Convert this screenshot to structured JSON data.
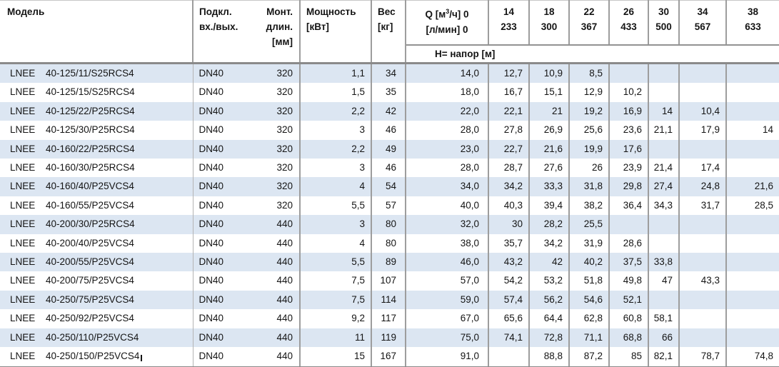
{
  "table": {
    "columns": {
      "model": "Модель",
      "connection": [
        "Подкл.",
        "вх./вых."
      ],
      "length": [
        "Монт.",
        "длин.",
        "[мм]"
      ],
      "power": [
        "Мощность",
        "[кВт]"
      ],
      "weight": [
        "Вес",
        "[кг]"
      ],
      "q_header": {
        "line1_prefix": "Q [м",
        "sup": "3",
        "line1_suffix": "/ч] 0",
        "line2": "[л/мин] 0"
      },
      "flow_columns": [
        {
          "m3h": "14",
          "lmin": "233"
        },
        {
          "m3h": "18",
          "lmin": "300"
        },
        {
          "m3h": "22",
          "lmin": "367"
        },
        {
          "m3h": "26",
          "lmin": "433"
        },
        {
          "m3h": "30",
          "lmin": "500"
        },
        {
          "m3h": "34",
          "lmin": "567"
        },
        {
          "m3h": "38",
          "lmin": "633"
        }
      ],
      "subheader": "Н= напор [м]"
    },
    "rows": [
      {
        "brand": "LNEE",
        "model": "40-125/11/S25RCS4",
        "connection": "DN40",
        "length": "320",
        "power": "1,1",
        "weight": "34",
        "heads": [
          "14,0",
          "12,7",
          "10,9",
          "8,5",
          "",
          "",
          "",
          ""
        ]
      },
      {
        "brand": "LNEE",
        "model": "40-125/15/S25RCS4",
        "connection": "DN40",
        "length": "320",
        "power": "1,5",
        "weight": "35",
        "heads": [
          "18,0",
          "16,7",
          "15,1",
          "12,9",
          "10,2",
          "",
          "",
          ""
        ]
      },
      {
        "brand": "LNEE",
        "model": "40-125/22/P25RCS4",
        "connection": "DN40",
        "length": "320",
        "power": "2,2",
        "weight": "42",
        "heads": [
          "22,0",
          "22,1",
          "21",
          "19,2",
          "16,9",
          "14",
          "10,4",
          ""
        ]
      },
      {
        "brand": "LNEE",
        "model": "40-125/30/P25RCS4",
        "connection": "DN40",
        "length": "320",
        "power": "3",
        "weight": "46",
        "heads": [
          "28,0",
          "27,8",
          "26,9",
          "25,6",
          "23,6",
          "21,1",
          "17,9",
          "14"
        ]
      },
      {
        "brand": "LNEE",
        "model": "40-160/22/P25RCS4",
        "connection": "DN40",
        "length": "320",
        "power": "2,2",
        "weight": "49",
        "heads": [
          "23,0",
          "22,7",
          "21,6",
          "19,9",
          "17,6",
          "",
          "",
          ""
        ]
      },
      {
        "brand": "LNEE",
        "model": "40-160/30/P25RCS4",
        "connection": "DN40",
        "length": "320",
        "power": "3",
        "weight": "46",
        "heads": [
          "28,0",
          "28,7",
          "27,6",
          "26",
          "23,9",
          "21,4",
          "17,4",
          ""
        ]
      },
      {
        "brand": "LNEE",
        "model": "40-160/40/P25VCS4",
        "connection": "DN40",
        "length": "320",
        "power": "4",
        "weight": "54",
        "heads": [
          "34,0",
          "34,2",
          "33,3",
          "31,8",
          "29,8",
          "27,4",
          "24,8",
          "21,6"
        ]
      },
      {
        "brand": "LNEE",
        "model": "40-160/55/P25VCS4",
        "connection": "DN40",
        "length": "320",
        "power": "5,5",
        "weight": "57",
        "heads": [
          "40,0",
          "40,3",
          "39,4",
          "38,2",
          "36,4",
          "34,3",
          "31,7",
          "28,5"
        ]
      },
      {
        "brand": "LNEE",
        "model": "40-200/30/P25RCS4",
        "connection": "DN40",
        "length": "440",
        "power": "3",
        "weight": "80",
        "heads": [
          "32,0",
          "30",
          "28,2",
          "25,5",
          "",
          "",
          "",
          ""
        ]
      },
      {
        "brand": "LNEE",
        "model": "40-200/40/P25VCS4",
        "connection": "DN40",
        "length": "440",
        "power": "4",
        "weight": "80",
        "heads": [
          "38,0",
          "35,7",
          "34,2",
          "31,9",
          "28,6",
          "",
          "",
          ""
        ]
      },
      {
        "brand": "LNEE",
        "model": "40-200/55/P25VCS4",
        "connection": "DN40",
        "length": "440",
        "power": "5,5",
        "weight": "89",
        "heads": [
          "46,0",
          "43,2",
          "42",
          "40,2",
          "37,5",
          "33,8",
          "",
          ""
        ]
      },
      {
        "brand": "LNEE",
        "model": "40-200/75/P25VCS4",
        "connection": "DN40",
        "length": "440",
        "power": "7,5",
        "weight": "107",
        "heads": [
          "57,0",
          "54,2",
          "53,2",
          "51,8",
          "49,8",
          "47",
          "43,3",
          ""
        ]
      },
      {
        "brand": "LNEE",
        "model": "40-250/75/P25VCS4",
        "connection": "DN40",
        "length": "440",
        "power": "7,5",
        "weight": "114",
        "heads": [
          "59,0",
          "57,4",
          "56,2",
          "54,6",
          "52,1",
          "",
          "",
          ""
        ]
      },
      {
        "brand": "LNEE",
        "model": "40-250/92/P25VCS4",
        "connection": "DN40",
        "length": "440",
        "power": "9,2",
        "weight": "117",
        "heads": [
          "67,0",
          "65,6",
          "64,4",
          "62,8",
          "60,8",
          "58,1",
          "",
          ""
        ]
      },
      {
        "brand": "LNEE",
        "model": "40-250/110/P25VCS4",
        "connection": "DN40",
        "length": "440",
        "power": "11",
        "weight": "119",
        "heads": [
          "75,0",
          "74,1",
          "72,8",
          "71,1",
          "68,8",
          "66",
          "",
          ""
        ]
      },
      {
        "brand": "LNEE",
        "model": "40-250/150/P25VCS4",
        "connection": "DN40",
        "length": "440",
        "power": "15",
        "weight": "167",
        "heads": [
          "91,0",
          "",
          "88,8",
          "87,2",
          "85",
          "82,1",
          "78,7",
          "74,8"
        ],
        "caret": true
      }
    ]
  },
  "colors": {
    "stripe": "#dce6f2",
    "grid_border": "#9d9d9d",
    "thick_border": "#8a8a8a",
    "text": "#141414"
  }
}
